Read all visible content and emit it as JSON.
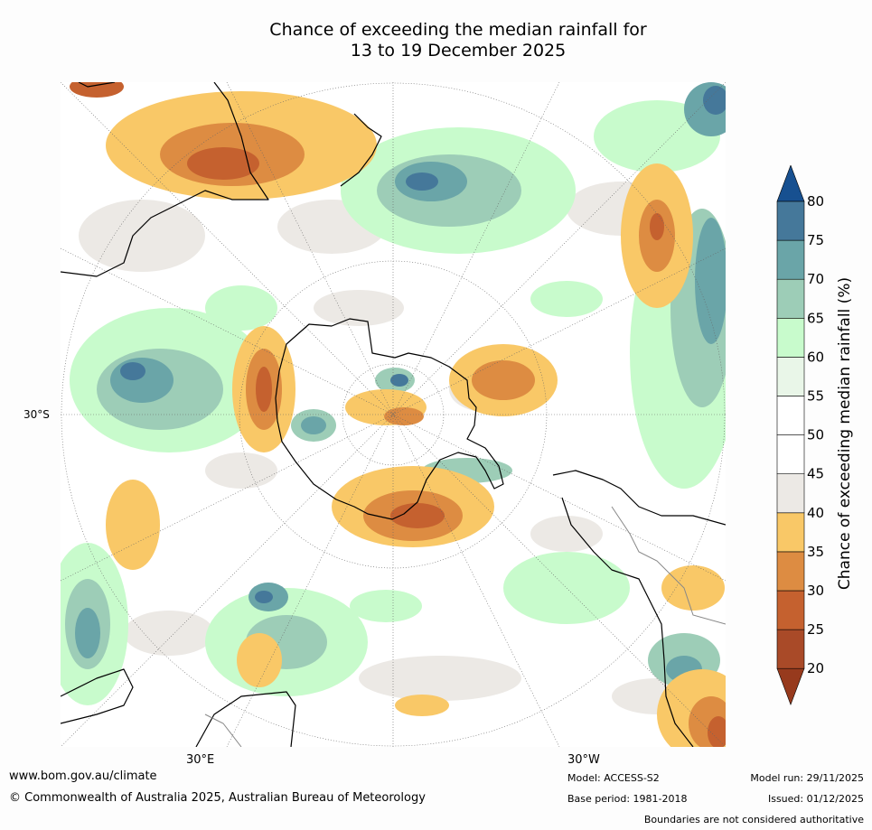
{
  "title": {
    "line1": "Chance of exceeding the median rainfall for",
    "line2": "13 to 19 December 2025"
  },
  "map": {
    "lat_label": "30°S",
    "lon_labels": [
      "30°E",
      "30°W"
    ],
    "projection": "South polar stereographic",
    "background_color": "#ffffff"
  },
  "colorbar": {
    "label": "Chance of exceeding median rainfall (%)",
    "ticks": [
      "20",
      "25",
      "30",
      "35",
      "40",
      "45",
      "50",
      "55",
      "60",
      "65",
      "70",
      "75",
      "80"
    ],
    "colors": [
      "#973a1d",
      "#a94a28",
      "#c5612f",
      "#dd8c42",
      "#f9c867",
      "#ece9e5",
      "#ffffff",
      "#ffffff",
      "#e9f6e8",
      "#c8fbcc",
      "#9dcdb7",
      "#6aa5a8",
      "#45789a",
      "#175090"
    ]
  },
  "footer": {
    "website": "www.bom.gov.au/climate",
    "copyright": "© Commonwealth of Australia 2025, Australian Bureau of Meteorology",
    "model": "Model: ACCESS-S2",
    "base_period": "Base period: 1981-2018",
    "model_run": "Model run: 29/11/2025",
    "issued": "Issued: 01/12/2025",
    "disclaimer": "Boundaries are not considered authoritative"
  }
}
